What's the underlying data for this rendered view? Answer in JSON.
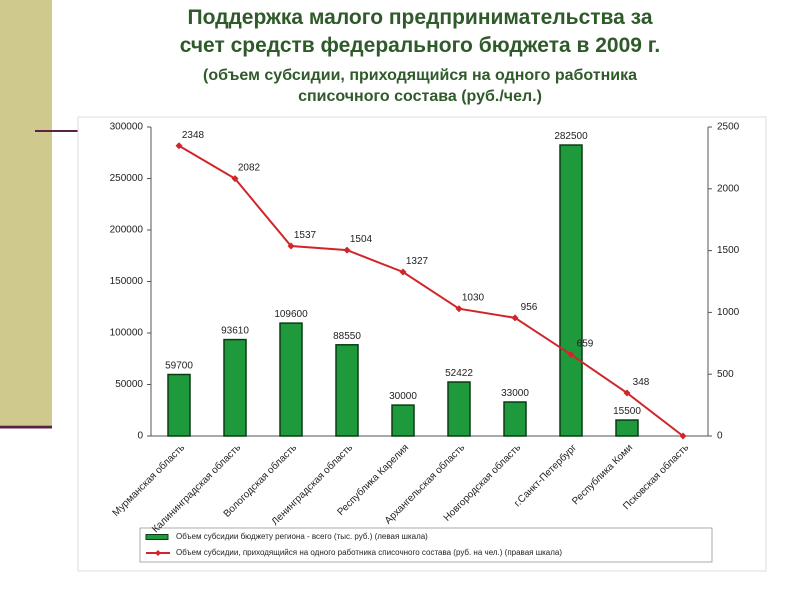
{
  "chart_data": {
    "type": "bar",
    "title": [
      "Поддержка малого предпринимательства за",
      "счет средств федерального бюджета в 2009 г."
    ],
    "subtitle": [
      "(объем субсидии, приходящийся на одного работника",
      "списочного состава (руб./чел.)"
    ],
    "categories": [
      "Мурманская область",
      "Калининградская область",
      "Вологодская область",
      "Ленинградская область",
      "Республика Карелия",
      "Архангельская область",
      "Новгородская область",
      "г.Санкт-Петербург",
      "Республика Коми",
      "Псковская область"
    ],
    "series": [
      {
        "name": "Объем субсидии бюджету региона - всего (тыс. руб.) (левая шкала)",
        "type": "bar",
        "color": "#1e9a3c",
        "values": [
          59700,
          93610,
          109600,
          88550,
          30000,
          52422,
          33000,
          282500,
          15500,
          null
        ]
      },
      {
        "name": "Объем субсидии, приходящийся на одного работника списочного состава (руб. на чел.) (правая шкала)",
        "type": "line",
        "axis": "y2",
        "color": "#d0262a",
        "values": [
          2348,
          2082,
          1537,
          1504,
          1327,
          1030,
          956,
          659,
          348,
          0
        ],
        "value_labels": [
          "2348",
          "2082",
          "1537",
          "1504",
          "1327",
          "1030",
          "956",
          "659",
          "348",
          null
        ]
      }
    ],
    "ylim": [
      0,
      300000
    ],
    "yticks": [
      0,
      50000,
      100000,
      150000,
      200000,
      250000,
      300000
    ],
    "y2lim": [
      0,
      2500
    ],
    "y2ticks": [
      0,
      500,
      1000,
      1500,
      2000,
      2500
    ]
  }
}
